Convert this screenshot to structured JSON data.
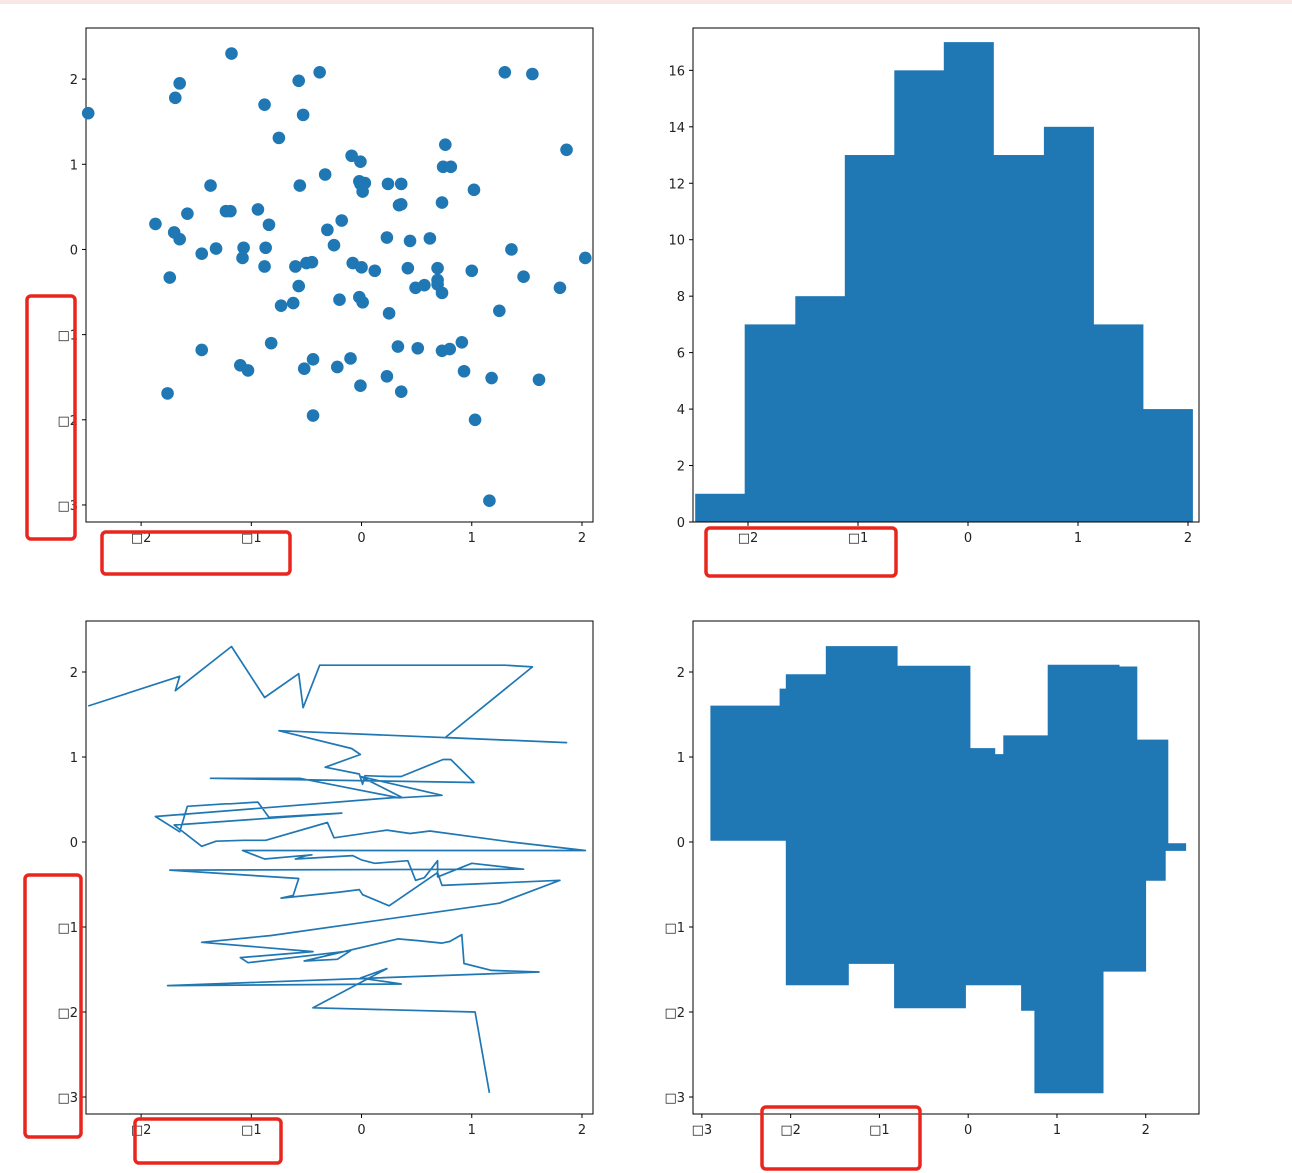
{
  "page": {
    "accent_color": "#1f77b4",
    "highlight_color": "#e8261d",
    "strip_color": "#fbe6e6"
  },
  "chart_data": [
    {
      "type": "scatter",
      "marker_color": "#1f77b4",
      "xlim": [
        -2.5,
        2.1
      ],
      "ylim": [
        -3.2,
        2.6
      ],
      "xticks": [
        -2,
        -1,
        0,
        1,
        2
      ],
      "xtick_labels": [
        "□2",
        "□1",
        "0",
        "1",
        "2"
      ],
      "yticks": [
        -3,
        -2,
        -1,
        0,
        1,
        2
      ],
      "ytick_labels": [
        "□3",
        "□2",
        "□1",
        "0",
        "1",
        "2"
      ],
      "x": [
        -2.48,
        -1.65,
        -1.69,
        -1.18,
        -0.88,
        -0.57,
        -0.53,
        -0.38,
        1.3,
        1.55,
        0.76,
        1.86,
        -0.75,
        -0.09,
        -0.01,
        -0.33,
        -0.02,
        0.01,
        0.03,
        0.24,
        0.36,
        0.74,
        0.81,
        1.02,
        -1.37,
        -0.56,
        0.34,
        0.73,
        -0.01,
        0.36,
        -1.87,
        -1.65,
        -1.58,
        -1.23,
        -1.19,
        -0.94,
        -0.84,
        -0.18,
        -1.7,
        -1.45,
        -1.32,
        -1.07,
        -0.87,
        -0.31,
        -0.25,
        0.23,
        0.44,
        0.62,
        1.36,
        2.03,
        -1.08,
        -0.88,
        -0.45,
        -0.5,
        -0.6,
        -0.08,
        0.0,
        0.12,
        0.42,
        0.49,
        0.57,
        0.69,
        0.69,
        1.0,
        1.47,
        -1.74,
        -0.57,
        -0.62,
        -0.73,
        -0.2,
        -0.02,
        0.01,
        0.25,
        0.69,
        0.73,
        1.8,
        1.25,
        -0.82,
        -1.45,
        -0.44,
        -1.1,
        -1.03,
        -0.1,
        -0.22,
        -0.52,
        0.33,
        0.51,
        0.73,
        0.8,
        0.91,
        0.93,
        1.18,
        1.61,
        -1.76,
        0.36,
        -0.01,
        0.23,
        -0.44,
        1.03,
        1.16
      ],
      "y": [
        1.6,
        1.95,
        1.78,
        2.3,
        1.7,
        1.98,
        1.58,
        2.08,
        2.08,
        2.06,
        1.23,
        1.17,
        1.31,
        1.1,
        1.03,
        0.88,
        0.8,
        0.68,
        0.78,
        0.77,
        0.77,
        0.97,
        0.97,
        0.7,
        0.75,
        0.75,
        0.52,
        0.55,
        0.77,
        0.53,
        0.3,
        0.12,
        0.42,
        0.45,
        0.45,
        0.47,
        0.29,
        0.34,
        0.2,
        -0.05,
        0.01,
        0.02,
        0.02,
        0.23,
        0.05,
        0.14,
        0.1,
        0.13,
        0.0,
        -0.1,
        -0.1,
        -0.2,
        -0.15,
        -0.16,
        -0.2,
        -0.16,
        -0.21,
        -0.25,
        -0.22,
        -0.45,
        -0.42,
        -0.22,
        -0.41,
        -0.25,
        -0.32,
        -0.33,
        -0.43,
        -0.63,
        -0.66,
        -0.59,
        -0.56,
        -0.62,
        -0.75,
        -0.36,
        -0.51,
        -0.45,
        -0.72,
        -1.1,
        -1.18,
        -1.29,
        -1.36,
        -1.42,
        -1.28,
        -1.38,
        -1.4,
        -1.14,
        -1.16,
        -1.19,
        -1.17,
        -1.09,
        -1.43,
        -1.51,
        -1.53,
        -1.69,
        -1.67,
        -1.6,
        -1.49,
        -1.95,
        -2.0,
        -2.95
      ]
    },
    {
      "type": "bar",
      "fill_color": "#1f77b4",
      "xlim": [
        -2.5,
        2.1
      ],
      "ylim": [
        0,
        17.5
      ],
      "xticks": [
        -2,
        -1,
        0,
        1,
        2
      ],
      "xtick_labels": [
        "□2",
        "□1",
        "0",
        "1",
        "2"
      ],
      "yticks": [
        0,
        2,
        4,
        6,
        8,
        10,
        12,
        14,
        16
      ],
      "ytick_labels": [
        "0",
        "2",
        "4",
        "6",
        "8",
        "10",
        "12",
        "14",
        "16"
      ],
      "bin_edges": [
        -2.48,
        -2.03,
        -1.57,
        -1.12,
        -0.67,
        -0.22,
        0.23,
        0.69,
        1.14,
        1.59,
        2.04
      ],
      "values": [
        1,
        7,
        8,
        13,
        16,
        17,
        13,
        14,
        7,
        4
      ]
    },
    {
      "type": "line",
      "line_color": "#1f77b4",
      "xlim": [
        -2.5,
        2.1
      ],
      "ylim": [
        -3.2,
        2.6
      ],
      "xticks": [
        -2,
        -1,
        0,
        1,
        2
      ],
      "xtick_labels": [
        "□2",
        "□1",
        "0",
        "1",
        "2"
      ],
      "yticks": [
        -3,
        -2,
        -1,
        0,
        1,
        2
      ],
      "ytick_labels": [
        "□3",
        "□2",
        "□1",
        "0",
        "1",
        "2"
      ],
      "note": "uses the same x/y sequence as the scatter chart, connected in order"
    },
    {
      "type": "area",
      "fill_color": "#1f77b4",
      "xlim": [
        -3.1,
        2.6
      ],
      "ylim": [
        -3.2,
        2.6
      ],
      "xticks": [
        -3,
        -2,
        -1,
        0,
        1,
        2
      ],
      "xtick_labels": [
        "□3",
        "□2",
        "□1",
        "0",
        "1",
        "2"
      ],
      "yticks": [
        -3,
        -2,
        -1,
        0,
        1,
        2
      ],
      "ytick_labels": [
        "□3",
        "□2",
        "□1",
        "0",
        "1",
        "2"
      ],
      "upper": [
        [
          -2.9,
          1.6
        ],
        [
          -2.12,
          1.6
        ],
        [
          -2.12,
          1.8
        ],
        [
          -2.05,
          1.8
        ],
        [
          -2.05,
          1.97
        ],
        [
          -1.6,
          1.97
        ],
        [
          -1.6,
          2.3
        ],
        [
          -0.8,
          2.3
        ],
        [
          -0.8,
          2.07
        ],
        [
          0.02,
          2.07
        ],
        [
          0.02,
          1.1
        ],
        [
          0.3,
          1.1
        ],
        [
          0.3,
          1.03
        ],
        [
          0.4,
          1.03
        ],
        [
          0.4,
          1.25
        ],
        [
          0.9,
          1.25
        ],
        [
          0.9,
          2.08
        ],
        [
          1.7,
          2.08
        ],
        [
          1.7,
          2.06
        ],
        [
          1.9,
          2.06
        ],
        [
          1.9,
          1.2
        ],
        [
          2.25,
          1.2
        ],
        [
          2.25,
          -0.02
        ],
        [
          2.45,
          -0.02
        ],
        [
          2.45,
          -0.1
        ]
      ],
      "lower": [
        [
          2.45,
          -0.1
        ],
        [
          2.22,
          -0.1
        ],
        [
          2.22,
          -0.45
        ],
        [
          2.0,
          -0.45
        ],
        [
          2.0,
          -1.52
        ],
        [
          1.52,
          -1.52
        ],
        [
          1.52,
          -2.95
        ],
        [
          0.75,
          -2.95
        ],
        [
          0.75,
          -1.98
        ],
        [
          0.6,
          -1.98
        ],
        [
          0.6,
          -1.68
        ],
        [
          -0.03,
          -1.68
        ],
        [
          -0.03,
          -1.95
        ],
        [
          -0.83,
          -1.95
        ],
        [
          -0.83,
          -1.43
        ],
        [
          -1.35,
          -1.43
        ],
        [
          -1.35,
          -1.68
        ],
        [
          -2.05,
          -1.68
        ],
        [
          -2.05,
          0.02
        ],
        [
          -2.9,
          0.02
        ]
      ]
    }
  ]
}
